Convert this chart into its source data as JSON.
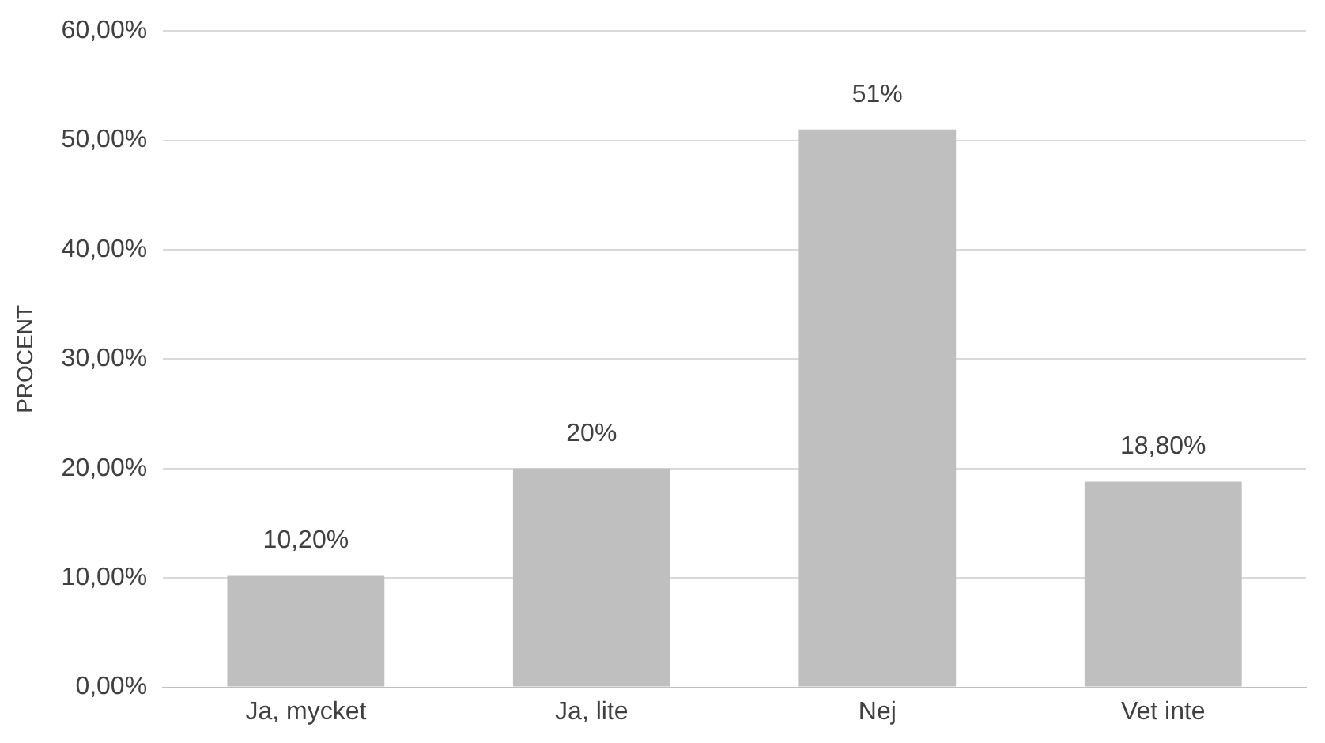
{
  "chart_data": {
    "type": "bar",
    "ylabel": "PROCENT",
    "categories": [
      "Ja, mycket",
      "Ja, lite",
      "Nej",
      "Vet inte"
    ],
    "values": [
      10.2,
      20,
      51,
      18.8
    ],
    "value_labels": [
      "10,20%",
      "20%",
      "51%",
      "18,80%"
    ],
    "color": "#bfbfbf",
    "ylim": [
      0,
      60
    ],
    "yticks": [
      {
        "value": 0,
        "label": "0,00%"
      },
      {
        "value": 10,
        "label": "10,00%"
      },
      {
        "value": 20,
        "label": "20,00%"
      },
      {
        "value": 30,
        "label": "30,00%"
      },
      {
        "value": 40,
        "label": "40,00%"
      },
      {
        "value": 50,
        "label": "50,00%"
      },
      {
        "value": 60,
        "label": "60,00%"
      }
    ],
    "grid": "y",
    "legend": false
  }
}
